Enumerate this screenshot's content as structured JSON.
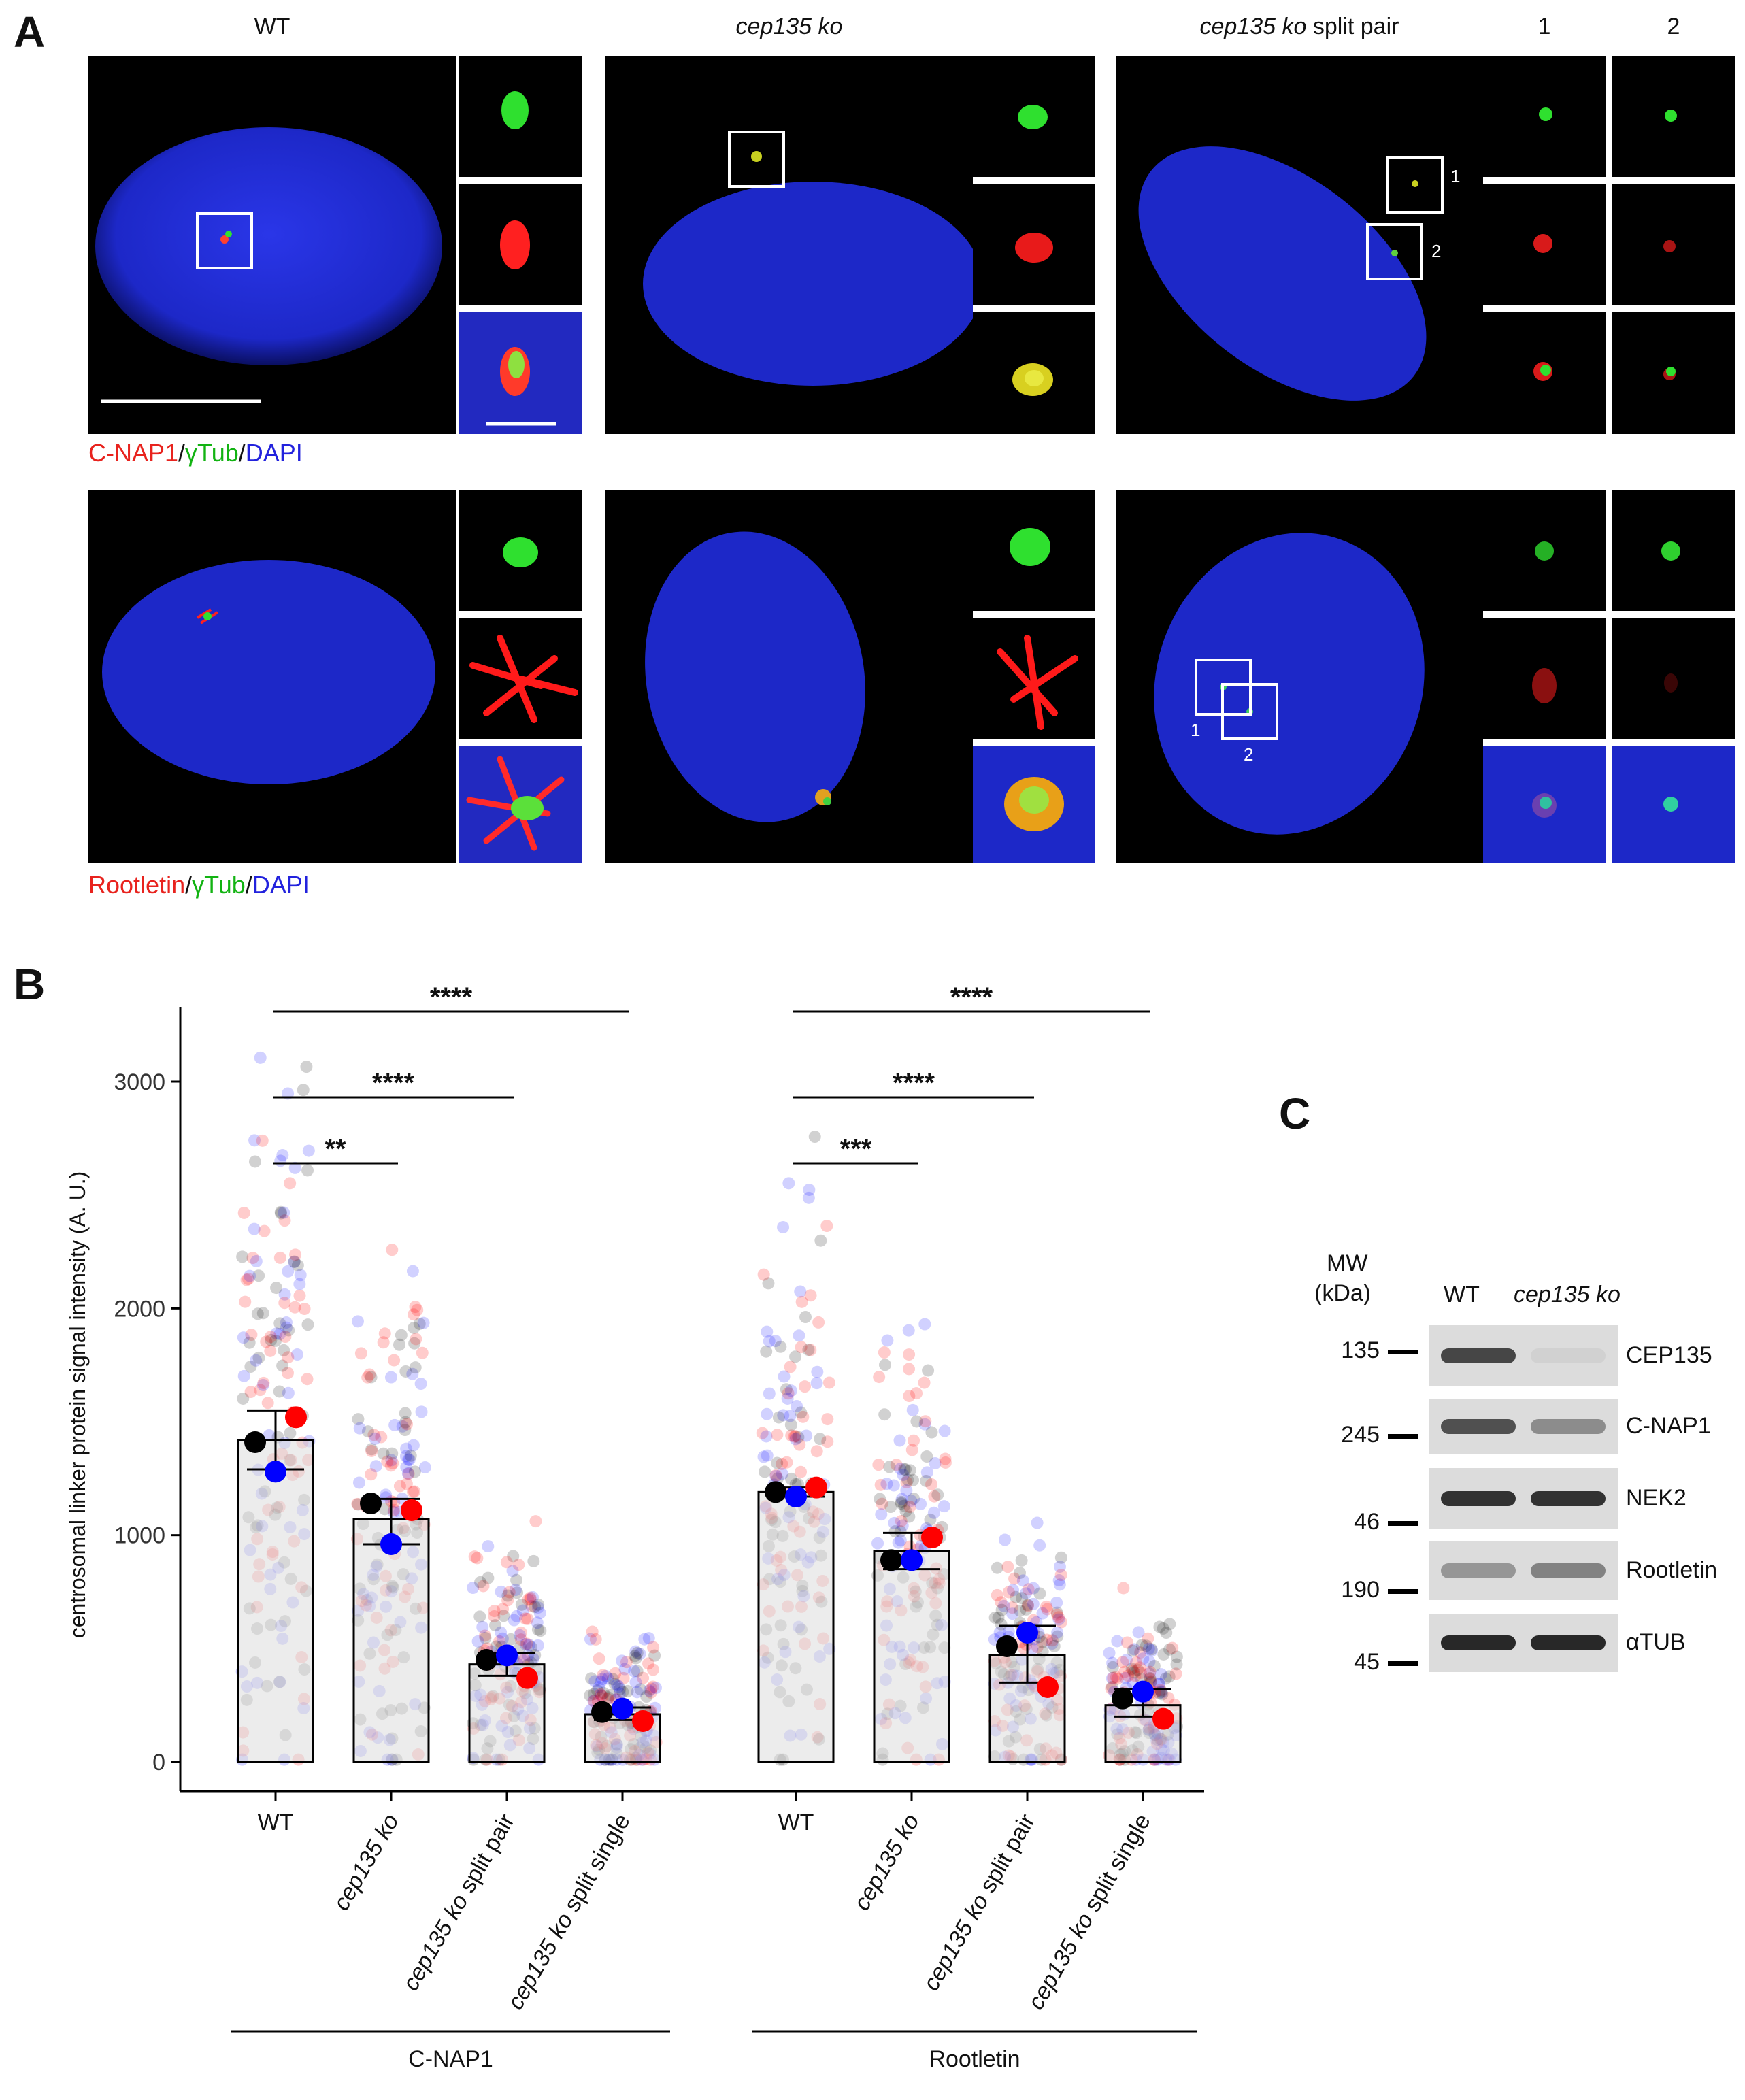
{
  "panels": {
    "A": "A",
    "B": "B",
    "C": "C"
  },
  "panel_a": {
    "col_titles": [
      {
        "pre": "",
        "italic": "",
        "post": "WT"
      },
      {
        "pre": "",
        "italic": "cep135 ko",
        "post": ""
      },
      {
        "pre": "",
        "italic": "cep135 ko",
        "post": " split pair"
      }
    ],
    "inset_titles": [
      "1",
      "2"
    ],
    "row1_caption": {
      "p1": "C-NAP1",
      "s1": "/",
      "p2": "γTub",
      "s2": "/",
      "p3": "DAPI"
    },
    "row2_caption": {
      "p1": "Rootletin",
      "s1": "/",
      "p2": "γTub",
      "s2": "/",
      "p3": "DAPI"
    },
    "box_labels": [
      "1",
      "2"
    ]
  },
  "chart_data": {
    "type": "bar",
    "ylabel": "centrosomal linker protein signal intensity (A. U.)",
    "ylim": [
      0,
      3150
    ],
    "yticks": [
      0,
      1000,
      2000,
      3000
    ],
    "groups": [
      "C-NAP1",
      "Rootletin"
    ],
    "categories": [
      "WT",
      "cep135 ko",
      "cep135 ko split pair",
      "cep135 ko split single"
    ],
    "bars": [
      {
        "group": "C-NAP1",
        "category": "WT",
        "mean": 1420,
        "sd_low": 1290,
        "sd_high": 1550,
        "replicates": {
          "black": 1410,
          "red": 1520,
          "blue": 1280
        }
      },
      {
        "group": "C-NAP1",
        "category": "cep135 ko",
        "mean": 1070,
        "sd_low": 960,
        "sd_high": 1160,
        "replicates": {
          "black": 1140,
          "red": 1110,
          "blue": 960
        }
      },
      {
        "group": "C-NAP1",
        "category": "cep135 ko split pair",
        "mean": 430,
        "sd_low": 380,
        "sd_high": 480,
        "replicates": {
          "black": 450,
          "red": 370,
          "blue": 470
        }
      },
      {
        "group": "C-NAP1",
        "category": "cep135 ko split single",
        "mean": 210,
        "sd_low": 185,
        "sd_high": 240,
        "replicates": {
          "black": 220,
          "red": 180,
          "blue": 235
        }
      },
      {
        "group": "Rootletin",
        "category": "WT",
        "mean": 1190,
        "sd_low": 1170,
        "sd_high": 1210,
        "replicates": {
          "black": 1190,
          "red": 1210,
          "blue": 1170
        }
      },
      {
        "group": "Rootletin",
        "category": "cep135 ko",
        "mean": 930,
        "sd_low": 850,
        "sd_high": 1010,
        "replicates": {
          "black": 890,
          "red": 990,
          "blue": 890
        }
      },
      {
        "group": "Rootletin",
        "category": "cep135 ko split pair",
        "mean": 470,
        "sd_low": 350,
        "sd_high": 600,
        "replicates": {
          "black": 510,
          "red": 330,
          "blue": 570
        }
      },
      {
        "group": "Rootletin",
        "category": "cep135 ko split single",
        "mean": 250,
        "sd_low": 200,
        "sd_high": 320,
        "replicates": {
          "black": 280,
          "red": 190,
          "blue": 310
        }
      }
    ],
    "significance": [
      {
        "group": "C-NAP1",
        "from": 0,
        "to": 1,
        "label": "**"
      },
      {
        "group": "C-NAP1",
        "from": 0,
        "to": 2,
        "label": "****"
      },
      {
        "group": "C-NAP1",
        "from": 0,
        "to": 3,
        "label": "****"
      },
      {
        "group": "Rootletin",
        "from": 0,
        "to": 1,
        "label": "***"
      },
      {
        "group": "Rootletin",
        "from": 0,
        "to": 2,
        "label": "****"
      },
      {
        "group": "Rootletin",
        "from": 0,
        "to": 3,
        "label": "****"
      }
    ],
    "replicate_colors": {
      "black": "#000000",
      "red": "#ff0000",
      "blue": "#0000ff"
    },
    "bar_fill": "#dcdcdc"
  },
  "panel_c": {
    "mw_label": "MW",
    "kda_label": "(kDa)",
    "lanes": [
      {
        "pre": "WT",
        "italic": ""
      },
      {
        "pre": "",
        "italic": "cep135 ko"
      }
    ],
    "blots": [
      {
        "marker": "135",
        "protein": "CEP135"
      },
      {
        "marker": "245",
        "protein": "C-NAP1"
      },
      {
        "marker": "46",
        "protein": "NEK2"
      },
      {
        "marker": "190",
        "protein": "Rootletin"
      },
      {
        "marker": "45",
        "protein": "αTUB"
      }
    ]
  }
}
